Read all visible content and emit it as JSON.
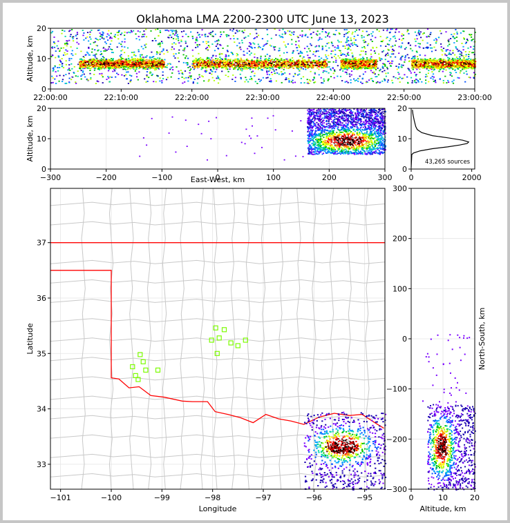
{
  "title": "Oklahoma LMA 2200-2300 UTC June 13, 2023",
  "colors": {
    "source_scale": [
      "#1a00b0",
      "#7a00ff",
      "#0050ff",
      "#00a0ff",
      "#00d7a0",
      "#00c000",
      "#b0ff00",
      "#ffff00",
      "#ff9000",
      "#ff0000",
      "#7a0000",
      "#000000",
      "#ffffff"
    ],
    "state_line": "#ff0000",
    "county_line": "#c8c8c8",
    "station_marker": "#7cfc00",
    "background": "#c6c6c6"
  },
  "chart_data": [
    {
      "id": "time_height",
      "type": "heatmap",
      "ylabel": "Altitude, km",
      "ylim": [
        0,
        20
      ],
      "yticks": [
        "0",
        "10",
        "20"
      ],
      "xticks": [
        "22:00:00",
        "22:10:00",
        "22:20:00",
        "22:30:00",
        "22:40:00",
        "22:50:00",
        "23:00:00"
      ],
      "density_bands": [
        {
          "x": [
            "22:04",
            "22:16"
          ],
          "y": [
            5,
            12
          ]
        },
        {
          "x": [
            "22:20",
            "22:39"
          ],
          "y": [
            5,
            12
          ]
        },
        {
          "x": [
            "22:41",
            "22:46"
          ],
          "y": [
            6,
            13
          ]
        },
        {
          "x": [
            "22:51",
            "23:00"
          ],
          "y": [
            5,
            12
          ]
        }
      ]
    },
    {
      "id": "ew_height",
      "type": "heatmap",
      "xlabel": "East-West, km",
      "ylabel": "Altitude, km",
      "xlim": [
        -300,
        300
      ],
      "ylim": [
        0,
        20
      ],
      "xticks": [
        "−300",
        "−200",
        "−100",
        "0",
        "100",
        "200",
        "300"
      ],
      "yticks": [
        "0",
        "10",
        "20"
      ],
      "core": {
        "x": [
          170,
          290
        ],
        "y": [
          6,
          14
        ]
      }
    },
    {
      "id": "alt_hist",
      "type": "line",
      "annotation": "43,265 sources",
      "xlim": [
        0,
        2100
      ],
      "ylim": [
        0,
        20
      ],
      "xticks": [
        "0",
        "2000"
      ],
      "yticks": [
        "0",
        "10",
        "20"
      ],
      "points": [
        [
          0,
          0.5
        ],
        [
          20,
          4.8
        ],
        [
          80,
          5.3
        ],
        [
          300,
          6.0
        ],
        [
          700,
          6.7
        ],
        [
          1200,
          7.3
        ],
        [
          1600,
          7.9
        ],
        [
          1850,
          8.4
        ],
        [
          1900,
          8.9
        ],
        [
          1700,
          9.5
        ],
        [
          1200,
          10.3
        ],
        [
          700,
          11.0
        ],
        [
          350,
          12.0
        ],
        [
          200,
          13.0
        ],
        [
          150,
          14.0
        ],
        [
          100,
          16.0
        ],
        [
          60,
          18.0
        ],
        [
          40,
          19.5
        ]
      ]
    },
    {
      "id": "plan_view",
      "type": "scatter",
      "xlabel": "Longitude",
      "ylabel": "Latitude",
      "xlim": [
        -101.2,
        -94.6
      ],
      "ylim": [
        32.55,
        37.98
      ],
      "xticks": [
        "−101",
        "−100",
        "−99",
        "−98",
        "−97",
        "−96",
        "−95"
      ],
      "yticks": [
        "33",
        "34",
        "35",
        "36",
        "37"
      ],
      "stations": [
        [
          -97.94,
          35.46
        ],
        [
          -97.77,
          35.43
        ],
        [
          -98.02,
          35.24
        ],
        [
          -97.87,
          35.28
        ],
        [
          -97.64,
          35.19
        ],
        [
          -97.35,
          35.24
        ],
        [
          -97.5,
          35.14
        ],
        [
          -97.91,
          35.0
        ],
        [
          -99.43,
          34.98
        ],
        [
          -99.37,
          34.85
        ],
        [
          -99.32,
          34.7
        ],
        [
          -99.08,
          34.7
        ],
        [
          -99.58,
          34.76
        ],
        [
          -99.52,
          34.6
        ],
        [
          -99.47,
          34.53
        ]
      ],
      "core": {
        "lon": [
          -95.0,
          -95.9
        ],
        "lat": [
          33.25,
          33.5
        ]
      }
    },
    {
      "id": "ns_height",
      "type": "heatmap",
      "xlabel": "Altitude, km",
      "ylabel": "North-South, km",
      "xlim": [
        0,
        20
      ],
      "ylim": [
        -300,
        300
      ],
      "xticks": [
        "0",
        "10",
        "20"
      ],
      "yticks": [
        "−300",
        "−200",
        "−100",
        "0",
        "100",
        "200",
        "300"
      ],
      "core": {
        "x": [
          6,
          14
        ],
        "y": [
          -260,
          -180
        ]
      }
    }
  ]
}
